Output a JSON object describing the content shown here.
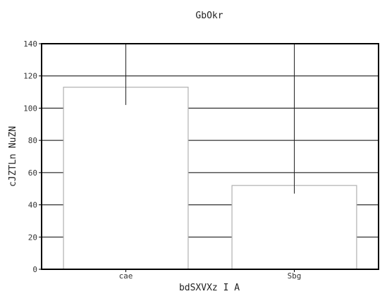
{
  "chart_data": {
    "type": "bar",
    "title": "GbOkr",
    "xlabel": "bdSXVXz I A",
    "ylabel": "cJZTLn NuZN",
    "categories": [
      "cae",
      "Sbg"
    ],
    "values": [
      113,
      52
    ],
    "error_lower": [
      102,
      47
    ],
    "error_upper": [
      140,
      140
    ],
    "ylim": [
      0,
      140
    ],
    "yticks": [
      0,
      20,
      40,
      60,
      80,
      100,
      120,
      140
    ],
    "grid": true,
    "legend": "none",
    "colors": {
      "bar_fill": "#ffffff",
      "bar_stroke": "#b0b0b0",
      "grid": "#000000",
      "axes": "#000000",
      "errorbar": "#222222"
    }
  }
}
